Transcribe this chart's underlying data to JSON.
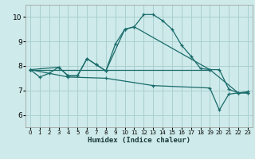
{
  "xlabel": "Humidex (Indice chaleur)",
  "bg_color": "#ceeaea",
  "grid_color": "#aacfcf",
  "line_color": "#1a6b6b",
  "xlim": [
    -0.5,
    23.5
  ],
  "ylim": [
    5.5,
    10.5
  ],
  "yticks": [
    6,
    7,
    8,
    9,
    10
  ],
  "xticks": [
    0,
    1,
    2,
    3,
    4,
    5,
    6,
    7,
    8,
    9,
    10,
    11,
    12,
    13,
    14,
    15,
    16,
    17,
    18,
    19,
    20,
    21,
    22,
    23
  ],
  "series1_x": [
    0,
    1,
    2,
    3,
    4,
    5,
    6,
    7,
    8,
    9,
    10,
    11,
    12,
    13,
    14,
    15,
    16,
    17,
    18,
    19,
    20,
    21,
    22,
    23
  ],
  "series1_y": [
    7.85,
    7.55,
    7.7,
    7.95,
    7.6,
    7.6,
    8.3,
    8.05,
    7.8,
    8.9,
    9.5,
    9.6,
    10.1,
    10.1,
    9.85,
    9.5,
    8.85,
    8.4,
    7.9,
    7.85,
    7.85,
    7.05,
    6.9,
    6.9
  ],
  "series2_x": [
    0,
    3,
    4,
    5,
    6,
    7,
    8,
    10,
    11,
    19,
    22,
    23
  ],
  "series2_y": [
    7.85,
    7.95,
    7.6,
    7.6,
    8.3,
    8.05,
    7.8,
    9.5,
    9.6,
    7.85,
    6.9,
    6.9
  ],
  "series3_x": [
    0,
    19
  ],
  "series3_y": [
    7.85,
    7.85
  ],
  "series4_x": [
    0,
    4,
    8,
    13,
    19,
    20,
    21,
    22,
    23
  ],
  "series4_y": [
    7.85,
    7.55,
    7.5,
    7.2,
    7.1,
    6.2,
    6.85,
    6.9,
    6.95
  ]
}
